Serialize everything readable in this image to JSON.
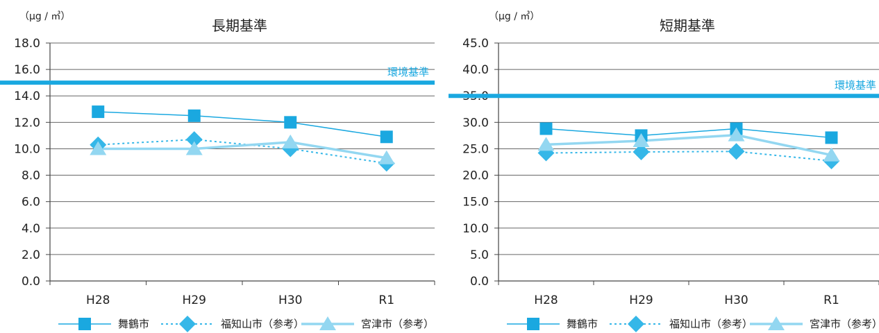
{
  "colors": {
    "maizuru": "#1aa8e0",
    "fukuchiyama": "#35b7e8",
    "miyazu": "#93d7f1",
    "standard": "#1aa8e0",
    "grid": "#666666",
    "axis": "#444444"
  },
  "legend": [
    {
      "label": "舞鶴市",
      "marker": "square",
      "style": "solid"
    },
    {
      "label": "福知山市（参考）",
      "marker": "diamond",
      "style": "dotted"
    },
    {
      "label": "宮津市（参考）",
      "marker": "triangle",
      "style": "solid-thick"
    }
  ],
  "chart_data": [
    {
      "type": "line",
      "title": "長期基準",
      "unit_label": "（μg / ㎥）",
      "categories": [
        "H28",
        "H29",
        "H30",
        "R1"
      ],
      "ylim": [
        0,
        18
      ],
      "y_ticks": [
        "0.0",
        "2.0",
        "4.0",
        "6.0",
        "8.0",
        "10.0",
        "12.0",
        "14.0",
        "16.0",
        "18.0"
      ],
      "grid": true,
      "legend_position": "bottom",
      "reference_line": {
        "label": "環境基準",
        "value": 15
      },
      "series": [
        {
          "name": "舞鶴市",
          "values": [
            12.8,
            12.5,
            12.0,
            10.9
          ]
        },
        {
          "name": "福知山市（参考）",
          "values": [
            10.3,
            10.7,
            10.0,
            8.9
          ]
        },
        {
          "name": "宮津市（参考）",
          "values": [
            10.0,
            10.0,
            10.5,
            9.3
          ]
        }
      ]
    },
    {
      "type": "line",
      "title": "短期基準",
      "unit_label": "（μg / ㎥）",
      "categories": [
        "H28",
        "H29",
        "H30",
        "R1"
      ],
      "ylim": [
        0,
        45
      ],
      "y_ticks": [
        "0.0",
        "5.0",
        "10.0",
        "15.0",
        "20.0",
        "25.0",
        "30.0",
        "35.0",
        "40.0",
        "45.0"
      ],
      "grid": true,
      "legend_position": "bottom",
      "reference_line": {
        "label": "環境基準",
        "value": 35
      },
      "series": [
        {
          "name": "舞鶴市",
          "values": [
            28.8,
            27.5,
            28.8,
            27.1
          ]
        },
        {
          "name": "福知山市（参考）",
          "values": [
            24.2,
            24.4,
            24.5,
            22.7
          ]
        },
        {
          "name": "宮津市（参考）",
          "values": [
            25.8,
            26.5,
            27.6,
            23.8
          ]
        }
      ]
    }
  ]
}
